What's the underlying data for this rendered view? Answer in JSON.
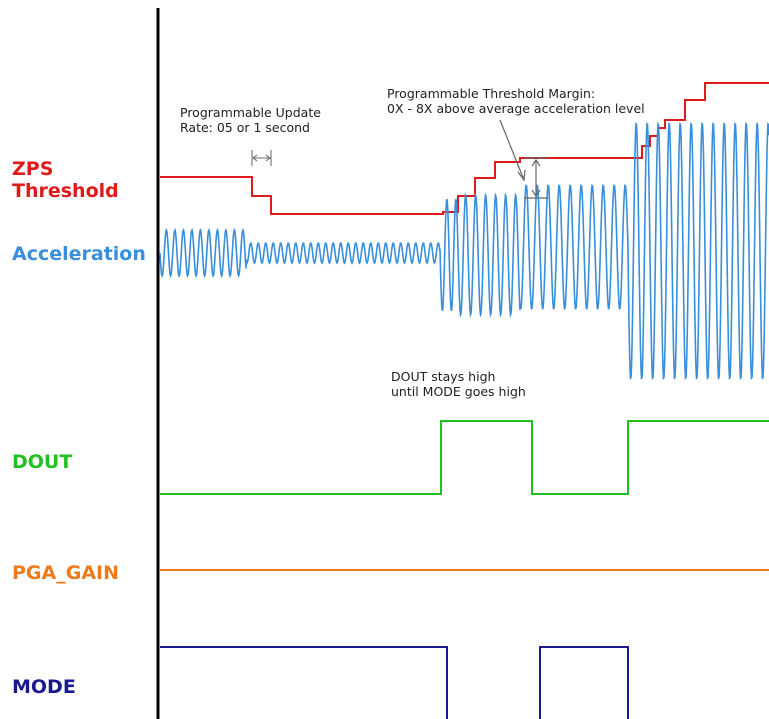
{
  "labels": {
    "zps_line1": "ZPS",
    "zps_line2": "Threshold",
    "acceleration": "Acceleration",
    "dout": "DOUT",
    "pga_gain": "PGA_GAIN",
    "mode": "MODE"
  },
  "annotations": {
    "update_rate_line1": "Programmable Update",
    "update_rate_line2": "Rate: 05 or 1 second",
    "margin_line1": "Programmable Threshold Margin:",
    "margin_line2": "0X - 8X above average acceleration level",
    "dout_line1": "DOUT stays high",
    "dout_line2": "until MODE goes high"
  },
  "colors": {
    "zps": "#e01a1a",
    "acceleration": "#3a8fdc",
    "dout": "#22c122",
    "pga_gain": "#ee7a1a",
    "mode": "#1a1a8c",
    "axis": "#000000",
    "annotation": "#555555"
  }
}
